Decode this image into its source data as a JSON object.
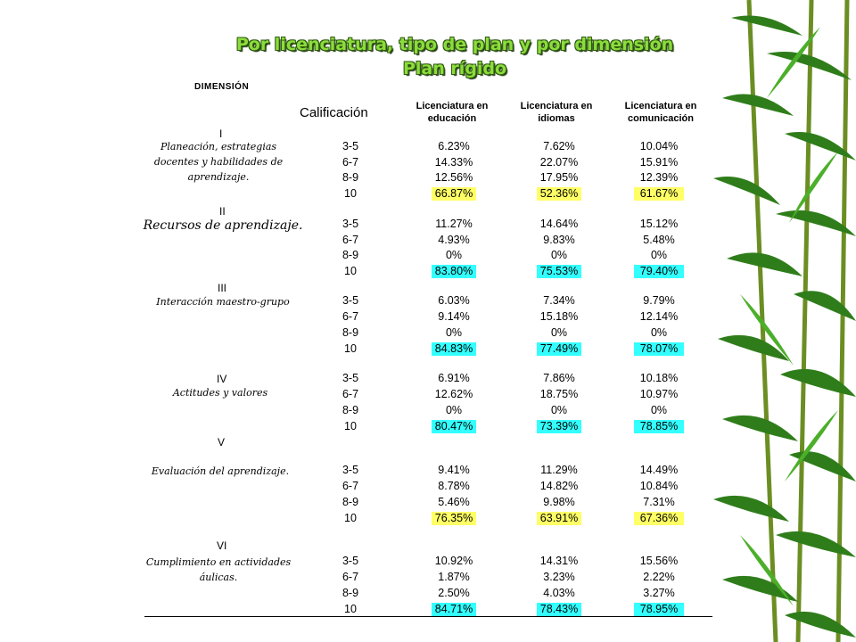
{
  "title_line1": "Por licenciatura, tipo de plan y por dimensión",
  "title_line2": "Plan  rígido",
  "dimension_header": "DIMENSIÓN",
  "calificacion_header": "Calificación",
  "columns": [
    "Licenciatura en educación",
    "Licenciatura en idiomas",
    "Licenciatura en comunicación"
  ],
  "highlight_colors": {
    "yellow": "#ffff66",
    "cyan": "#33ffff"
  },
  "dimensions": [
    {
      "roman": "I",
      "name": "Planeación, estrategias docentes y habilidades de aprendizaje.",
      "highlight": "yellow",
      "rows": [
        {
          "cal": "3-5",
          "v": [
            "6.23%",
            "7.62%",
            "10.04%"
          ]
        },
        {
          "cal": "6-7",
          "v": [
            "14.33%",
            "22.07%",
            "15.91%"
          ]
        },
        {
          "cal": "8-9",
          "v": [
            "12.56%",
            "17.95%",
            "12.39%"
          ]
        },
        {
          "cal": "10",
          "v": [
            "66.87%",
            "52.36%",
            "61.67%"
          ]
        }
      ]
    },
    {
      "roman": "II",
      "name": "Recursos de aprendizaje.",
      "highlight": "cyan",
      "rows": [
        {
          "cal": "3-5",
          "v": [
            "11.27%",
            "14.64%",
            "15.12%"
          ]
        },
        {
          "cal": "6-7",
          "v": [
            "4.93%",
            "9.83%",
            "5.48%"
          ]
        },
        {
          "cal": "8-9",
          "v": [
            "0%",
            "0%",
            "0%"
          ]
        },
        {
          "cal": "10",
          "v": [
            "83.80%",
            "75.53%",
            "79.40%"
          ]
        }
      ]
    },
    {
      "roman": "III",
      "name": "Interacción maestro-grupo",
      "highlight": "cyan",
      "rows": [
        {
          "cal": "3-5",
          "v": [
            "6.03%",
            "7.34%",
            "9.79%"
          ]
        },
        {
          "cal": "6-7",
          "v": [
            "9.14%",
            "15.18%",
            "12.14%"
          ]
        },
        {
          "cal": "8-9",
          "v": [
            "0%",
            "0%",
            "0%"
          ]
        },
        {
          "cal": "10",
          "v": [
            "84.83%",
            "77.49%",
            "78.07%"
          ]
        }
      ]
    },
    {
      "roman": "IV",
      "name": "Actitudes y valores",
      "highlight": "cyan",
      "rows": [
        {
          "cal": "3-5",
          "v": [
            "6.91%",
            "7.86%",
            "10.18%"
          ]
        },
        {
          "cal": "6-7",
          "v": [
            "12.62%",
            "18.75%",
            "10.97%"
          ]
        },
        {
          "cal": "8-9",
          "v": [
            "0%",
            "0%",
            "0%"
          ]
        },
        {
          "cal": "10",
          "v": [
            "80.47%",
            "73.39%",
            "78.85%"
          ]
        }
      ]
    },
    {
      "roman": "V",
      "name": "Evaluación del aprendizaje.",
      "highlight": "yellow",
      "rows": [
        {
          "cal": "3-5",
          "v": [
            "9.41%",
            "11.29%",
            "14.49%"
          ]
        },
        {
          "cal": "6-7",
          "v": [
            "8.78%",
            "14.82%",
            "10.84%"
          ]
        },
        {
          "cal": "8-9",
          "v": [
            "5.46%",
            "9.98%",
            "7.31%"
          ]
        },
        {
          "cal": "10",
          "v": [
            "76.35%",
            "63.91%",
            "67.36%"
          ]
        }
      ]
    },
    {
      "roman": "VI",
      "name": "Cumplimiento en actividades áulicas.",
      "highlight": "cyan",
      "rows": [
        {
          "cal": "3-5",
          "v": [
            "10.92%",
            "14.31%",
            "15.56%"
          ]
        },
        {
          "cal": "6-7",
          "v": [
            "1.87%",
            "3.23%",
            "2.22%"
          ]
        },
        {
          "cal": "8-9",
          "v": [
            "2.50%",
            "4.03%",
            "3.27%"
          ]
        },
        {
          "cal": "10",
          "v": [
            "84.71%",
            "78.43%",
            "78.95%"
          ]
        }
      ]
    }
  ]
}
